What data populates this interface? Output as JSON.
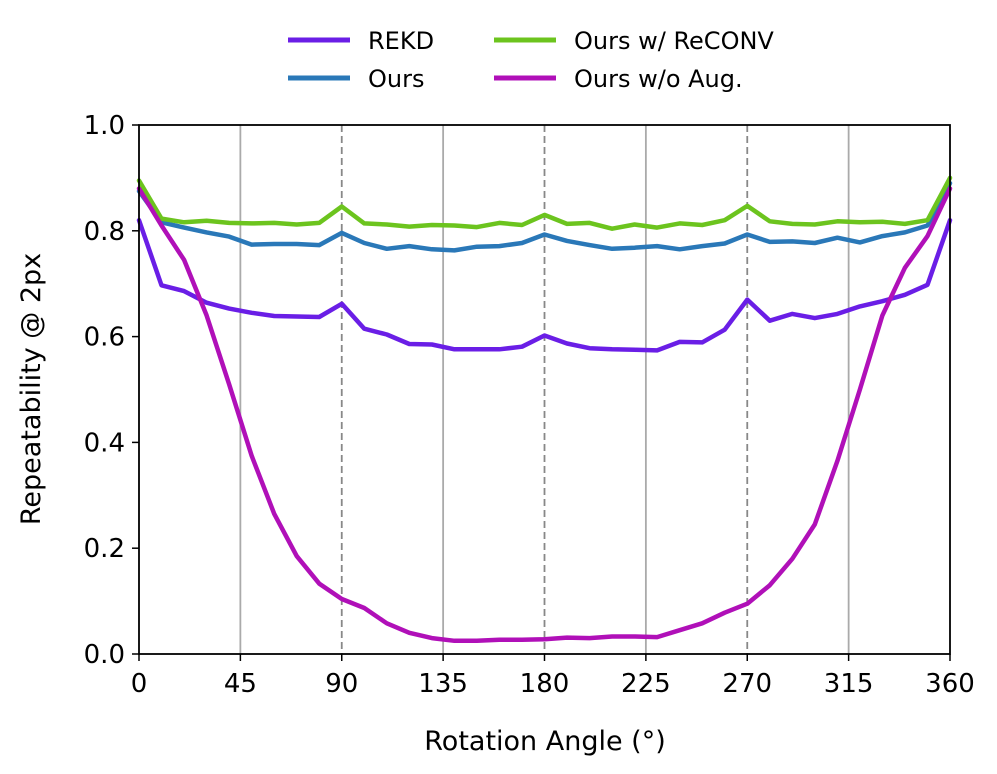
{
  "chart_data": {
    "type": "line",
    "xlabel": "Rotation Angle (°)",
    "ylabel": "Repeatability @ 2px",
    "xlim": [
      0,
      360
    ],
    "ylim": [
      0,
      1.0
    ],
    "x_ticks": [
      0,
      45,
      90,
      135,
      180,
      225,
      270,
      315,
      360
    ],
    "x_tick_labels": [
      "0",
      "45",
      "90",
      "135",
      "180",
      "225",
      "270",
      "315",
      "360"
    ],
    "y_ticks": [
      0,
      0.2,
      0.4,
      0.6,
      0.8,
      1.0
    ],
    "y_tick_labels": [
      "0.0",
      "0.2",
      "0.4",
      "0.6",
      "0.8",
      "1.0"
    ],
    "vertical_lines": {
      "solid": [
        45,
        135,
        225,
        315
      ],
      "dashed": [
        90,
        180,
        270
      ],
      "color": "#aaaaaa"
    },
    "legend_position": "top-center",
    "x": [
      0,
      10,
      20,
      30,
      40,
      50,
      60,
      70,
      80,
      90,
      100,
      110,
      120,
      130,
      140,
      150,
      160,
      170,
      180,
      190,
      200,
      210,
      220,
      230,
      240,
      250,
      260,
      270,
      280,
      290,
      300,
      310,
      320,
      330,
      340,
      350,
      360
    ],
    "series": [
      {
        "name": "REKD",
        "color": "#6a1ee6",
        "values": [
          0.82,
          0.697,
          0.686,
          0.664,
          0.653,
          0.645,
          0.639,
          0.638,
          0.637,
          0.662,
          0.615,
          0.604,
          0.586,
          0.585,
          0.576,
          0.576,
          0.576,
          0.581,
          0.602,
          0.587,
          0.578,
          0.576,
          0.575,
          0.574,
          0.59,
          0.589,
          0.613,
          0.67,
          0.63,
          0.643,
          0.635,
          0.643,
          0.657,
          0.667,
          0.679,
          0.698,
          0.82
        ]
      },
      {
        "name": "Ours",
        "color": "#2a78b8",
        "values": [
          0.875,
          0.816,
          0.806,
          0.797,
          0.789,
          0.774,
          0.775,
          0.775,
          0.773,
          0.796,
          0.777,
          0.766,
          0.771,
          0.765,
          0.763,
          0.77,
          0.771,
          0.777,
          0.793,
          0.781,
          0.773,
          0.766,
          0.768,
          0.771,
          0.765,
          0.771,
          0.776,
          0.793,
          0.779,
          0.78,
          0.777,
          0.787,
          0.778,
          0.79,
          0.797,
          0.81,
          0.89
        ]
      },
      {
        "name": "Ours w/ ReCONV",
        "color": "#6cc41e",
        "values": [
          0.895,
          0.823,
          0.816,
          0.819,
          0.815,
          0.814,
          0.815,
          0.812,
          0.815,
          0.846,
          0.814,
          0.812,
          0.808,
          0.811,
          0.81,
          0.807,
          0.815,
          0.811,
          0.83,
          0.813,
          0.815,
          0.804,
          0.812,
          0.806,
          0.814,
          0.811,
          0.82,
          0.847,
          0.818,
          0.813,
          0.812,
          0.818,
          0.816,
          0.817,
          0.813,
          0.82,
          0.9
        ]
      },
      {
        "name": "Ours w/o Aug.",
        "color": "#b010b8",
        "values": [
          0.88,
          0.81,
          0.745,
          0.64,
          0.51,
          0.375,
          0.265,
          0.185,
          0.133,
          0.104,
          0.087,
          0.058,
          0.04,
          0.03,
          0.025,
          0.025,
          0.027,
          0.027,
          0.028,
          0.031,
          0.03,
          0.033,
          0.033,
          0.032,
          0.045,
          0.058,
          0.078,
          0.095,
          0.13,
          0.18,
          0.245,
          0.365,
          0.5,
          0.64,
          0.73,
          0.79,
          0.88
        ]
      }
    ]
  }
}
